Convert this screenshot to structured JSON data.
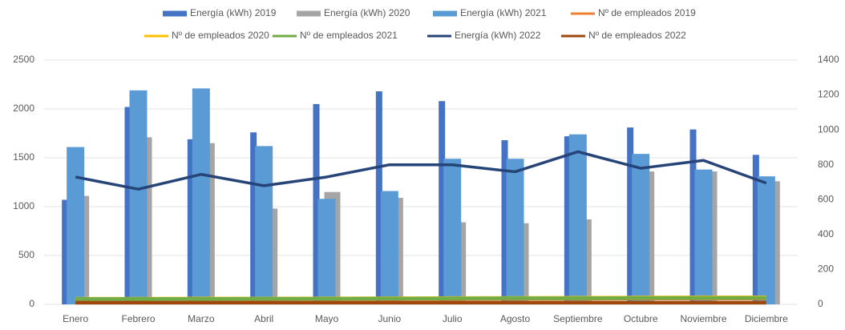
{
  "chart_data": {
    "type": "bar",
    "categories": [
      "Enero",
      "Febrero",
      "Marzo",
      "Abril",
      "Mayo",
      "Junio",
      "Julio",
      "Agosto",
      "Septiembre",
      "Octubre",
      "Noviembre",
      "Diciembre"
    ],
    "series": [
      {
        "name": "Energía (kWh) 2019",
        "type": "bar",
        "color": "#4472c4",
        "values": [
          1070,
          2020,
          1690,
          1760,
          2050,
          2180,
          2080,
          1680,
          1720,
          1810,
          1790,
          1530
        ]
      },
      {
        "name": "Energía (kWh) 2020",
        "type": "bar",
        "color": "#a5a5a5",
        "values": [
          1110,
          1710,
          1650,
          980,
          1150,
          1090,
          840,
          830,
          870,
          1360,
          1360,
          1260
        ]
      },
      {
        "name": "Energía (kWh) 2021",
        "type": "bar",
        "color": "#5b9bd5",
        "values": [
          1610,
          2190,
          2210,
          1620,
          1080,
          1160,
          1490,
          1490,
          1740,
          1540,
          1380,
          1310
        ]
      },
      {
        "name": "Nº de empleados 2019",
        "type": "line",
        "axis": "y2",
        "color": "#ed7d31",
        "values": [
          30,
          30,
          30,
          30,
          31,
          31,
          31,
          32,
          32,
          33,
          33,
          33
        ]
      },
      {
        "name": "Nº de empleados 2020",
        "type": "line",
        "axis": "y2",
        "color": "#ffc000",
        "values": [
          32,
          32,
          33,
          33,
          34,
          35,
          36,
          37,
          38,
          39,
          40,
          40
        ]
      },
      {
        "name": "Nº de empleados 2021",
        "type": "line",
        "axis": "y2",
        "color": "#70ad47",
        "values": [
          31,
          31,
          31,
          32,
          32,
          33,
          34,
          35,
          35,
          36,
          37,
          37
        ]
      },
      {
        "name": "Energía (kWh) 2022",
        "type": "line",
        "axis": "y2",
        "color": "#264478",
        "values": [
          730,
          660,
          745,
          680,
          730,
          800,
          800,
          760,
          875,
          780,
          825,
          695
        ]
      },
      {
        "name": "Nº de empleados 2022",
        "type": "line",
        "axis": "y2",
        "color": "#9e480e",
        "values": [
          10,
          10,
          10,
          10,
          10,
          10,
          10,
          10,
          10,
          10,
          10,
          10
        ]
      }
    ],
    "ylim": [
      0,
      2500
    ],
    "yticks": [
      0,
      500,
      1000,
      1500,
      2000,
      2500
    ],
    "y2lim": [
      0,
      1400
    ],
    "y2ticks": [
      0,
      200,
      400,
      600,
      800,
      1000,
      1200,
      1400
    ],
    "grid": true,
    "legend": "top"
  }
}
